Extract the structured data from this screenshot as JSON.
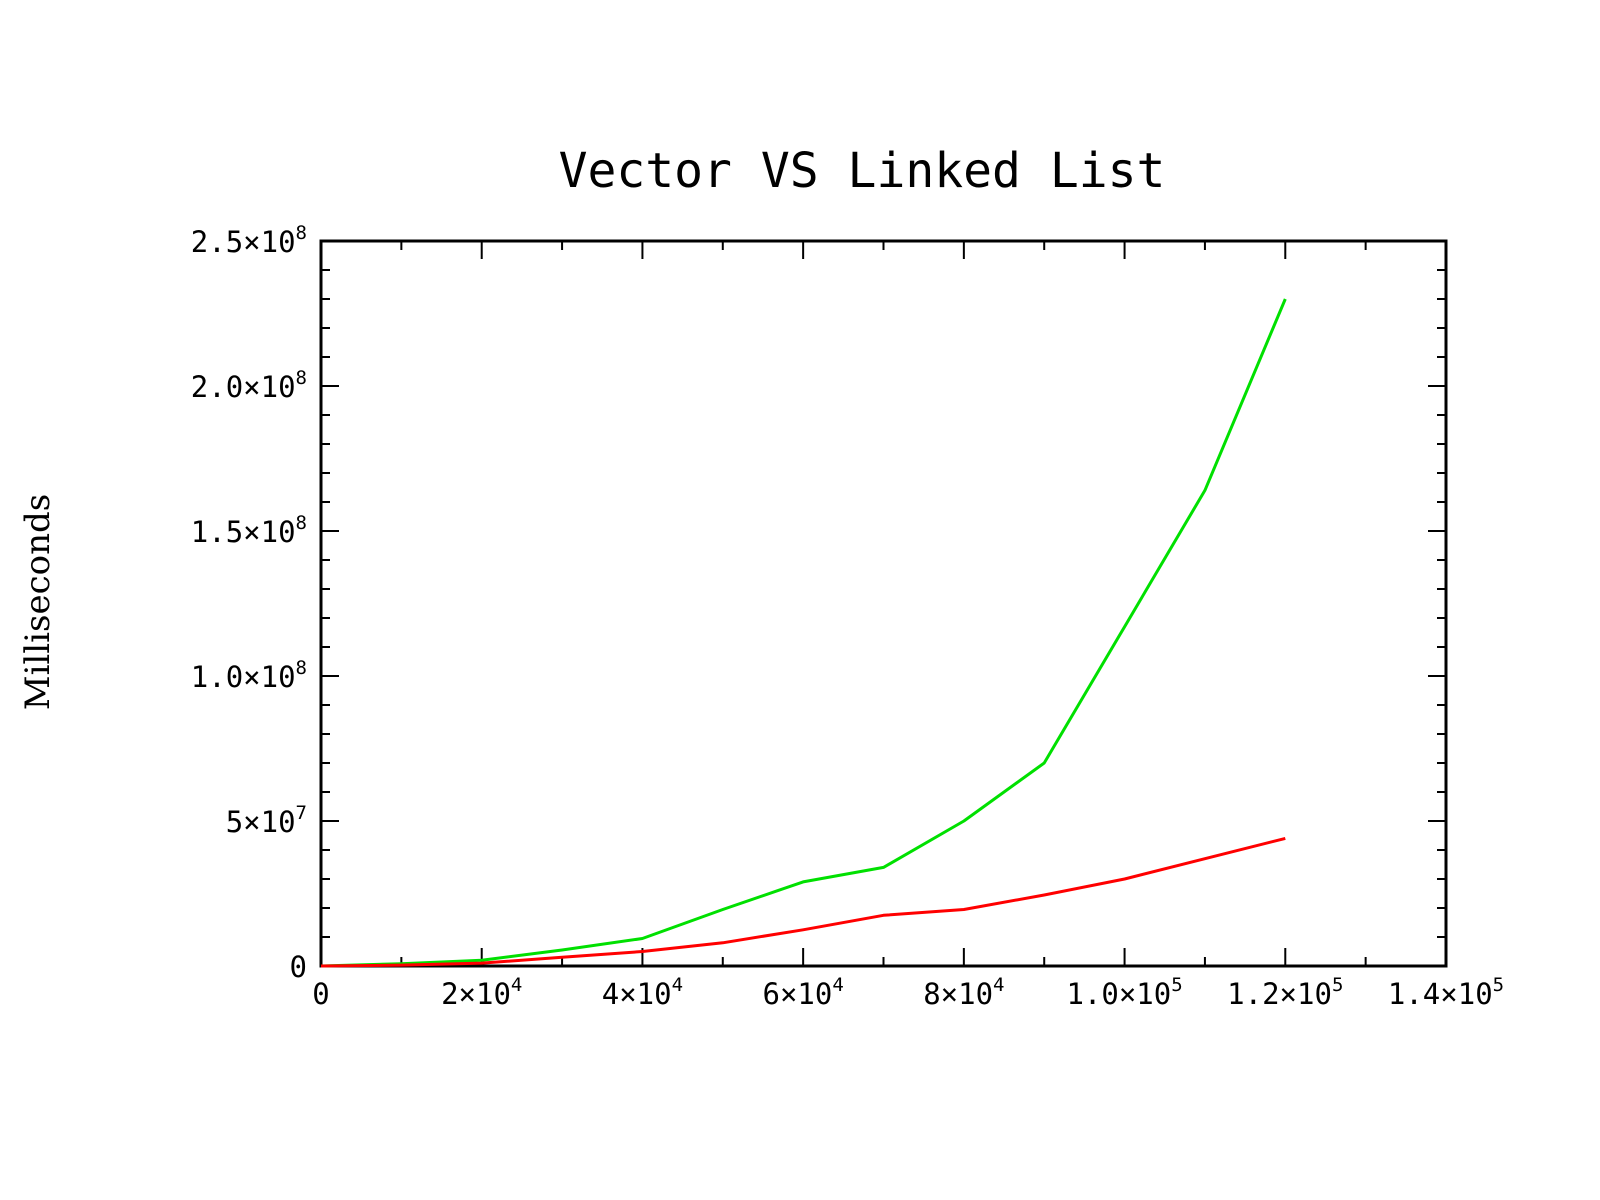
{
  "chart_data": {
    "type": "line",
    "title": "Vector VS Linked List",
    "xlabel": "",
    "ylabel": "Milliseconds",
    "xlim": [
      0,
      140000
    ],
    "ylim": [
      0,
      250000000
    ],
    "x_ticks": [
      {
        "value": 0,
        "mant": "0",
        "exp": ""
      },
      {
        "value": 20000,
        "mant": "2×10",
        "exp": "4"
      },
      {
        "value": 40000,
        "mant": "4×10",
        "exp": "4"
      },
      {
        "value": 60000,
        "mant": "6×10",
        "exp": "4"
      },
      {
        "value": 80000,
        "mant": "8×10",
        "exp": "4"
      },
      {
        "value": 100000,
        "mant": "1.0×10",
        "exp": "5"
      },
      {
        "value": 120000,
        "mant": "1.2×10",
        "exp": "5"
      },
      {
        "value": 140000,
        "mant": "1.4×10",
        "exp": "5"
      }
    ],
    "y_ticks": [
      {
        "value": 0,
        "mant": "0",
        "exp": ""
      },
      {
        "value": 50000000,
        "mant": "5×10",
        "exp": "7"
      },
      {
        "value": 100000000,
        "mant": "1.0×10",
        "exp": "8"
      },
      {
        "value": 150000000,
        "mant": "1.5×10",
        "exp": "8"
      },
      {
        "value": 200000000,
        "mant": "2.0×10",
        "exp": "8"
      },
      {
        "value": 250000000,
        "mant": "2.5×10",
        "exp": "8"
      }
    ],
    "grid": false,
    "series": [
      {
        "color": "#00e000",
        "x": [
          0,
          10000,
          20000,
          30000,
          40000,
          50000,
          60000,
          70000,
          80000,
          90000,
          100000,
          110000,
          120000
        ],
        "values": [
          0,
          800000,
          2000000,
          5500000,
          9500000,
          19500000,
          29000000,
          34000000,
          50000000,
          70000000,
          117000000,
          164000000,
          230000000
        ]
      },
      {
        "color": "#ff0000",
        "x": [
          0,
          10000,
          20000,
          30000,
          40000,
          50000,
          60000,
          70000,
          80000,
          90000,
          100000,
          110000,
          120000
        ],
        "values": [
          0,
          300000,
          1000000,
          3000000,
          5000000,
          8000000,
          12500000,
          17500000,
          19500000,
          24500000,
          30000000,
          37000000,
          44000000
        ]
      }
    ]
  }
}
